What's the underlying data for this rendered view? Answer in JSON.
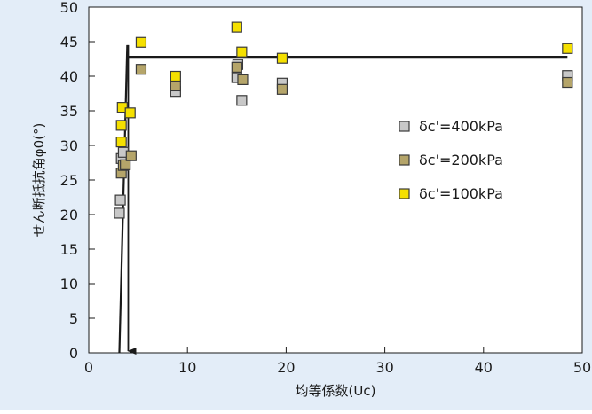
{
  "chart_data": {
    "type": "scatter",
    "xlabel": "均等係数(Uc)",
    "ylabel": "せん断抵抗角φ0(°)",
    "xlim": [
      0,
      50
    ],
    "ylim": [
      0,
      50
    ],
    "xticks": [
      0,
      10,
      20,
      30,
      40,
      50
    ],
    "yticks": [
      0,
      5,
      10,
      15,
      20,
      25,
      30,
      35,
      40,
      45,
      50
    ],
    "grid": false,
    "legend_position": "right-center",
    "series": [
      {
        "name": "δc'=400kPa",
        "color": "#c8c8c8",
        "points": [
          [
            3.1,
            20.2
          ],
          [
            3.2,
            22.1
          ],
          [
            3.3,
            28.1
          ],
          [
            3.5,
            29.0
          ],
          [
            8.8,
            37.8
          ],
          [
            15.0,
            39.8
          ],
          [
            15.1,
            41.7
          ],
          [
            15.5,
            36.5
          ],
          [
            19.6,
            39.0
          ],
          [
            48.5,
            40.1
          ]
        ]
      },
      {
        "name": "δc'=200kPa",
        "color": "#b5a56a",
        "points": [
          [
            3.3,
            26.0
          ],
          [
            3.5,
            27.1
          ],
          [
            3.7,
            27.2
          ],
          [
            4.3,
            28.5
          ],
          [
            5.3,
            41.0
          ],
          [
            8.8,
            38.6
          ],
          [
            15.0,
            41.3
          ],
          [
            15.6,
            39.5
          ],
          [
            19.6,
            38.1
          ],
          [
            48.5,
            39.1
          ]
        ]
      },
      {
        "name": "δc'=100kPa",
        "color": "#f5e000",
        "points": [
          [
            3.3,
            30.5
          ],
          [
            3.3,
            32.9
          ],
          [
            3.4,
            35.5
          ],
          [
            4.2,
            34.7
          ],
          [
            5.3,
            44.9
          ],
          [
            8.8,
            40.0
          ],
          [
            15.0,
            47.1
          ],
          [
            15.5,
            43.5
          ],
          [
            19.6,
            42.6
          ],
          [
            48.5,
            44.0
          ]
        ]
      }
    ],
    "lines": [
      {
        "x": [
          3.1,
          3.9
        ],
        "y": [
          0,
          44.5
        ]
      },
      {
        "x": [
          4.0,
          48.5
        ],
        "y": [
          42.8,
          42.8
        ]
      }
    ],
    "annotation_arrow": {
      "x": 4.0,
      "y_from": 44.5,
      "y_to": 0
    }
  }
}
